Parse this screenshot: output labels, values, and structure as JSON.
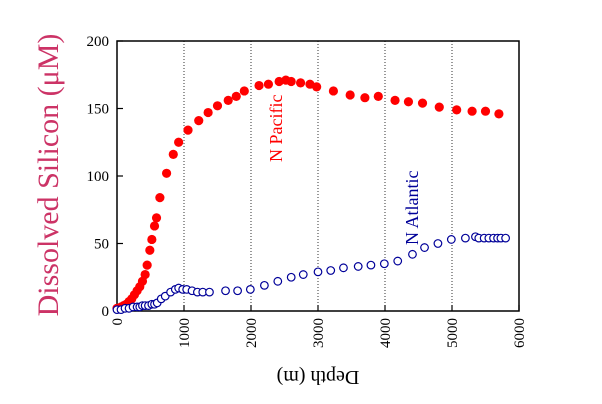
{
  "chart_data": {
    "type": "scatter",
    "title": "",
    "xlabel": "Depth (m)",
    "ylabel": "Dissolved Silicon (μM)",
    "xlim": [
      0,
      6000
    ],
    "ylim": [
      0,
      200
    ],
    "xticks": [
      "0",
      "1000",
      "2000",
      "3000",
      "4000",
      "5000",
      "6000"
    ],
    "yticks": [
      "0",
      "50",
      "100",
      "150",
      "200"
    ],
    "grid": "vertical dotted lines at 1000, 2000, 3000, 4000, 5000",
    "series": [
      {
        "name": "N Pacific",
        "marker": "filled-circle",
        "color": "#ff0000",
        "points": [
          [
            0,
            2
          ],
          [
            30,
            2
          ],
          [
            60,
            3
          ],
          [
            100,
            4
          ],
          [
            140,
            5
          ],
          [
            180,
            7
          ],
          [
            220,
            9
          ],
          [
            260,
            12
          ],
          [
            300,
            15
          ],
          [
            340,
            18
          ],
          [
            380,
            22
          ],
          [
            420,
            27
          ],
          [
            450,
            34
          ],
          [
            490,
            45
          ],
          [
            520,
            53
          ],
          [
            560,
            63
          ],
          [
            590,
            69
          ],
          [
            640,
            84
          ],
          [
            740,
            102
          ],
          [
            840,
            116
          ],
          [
            920,
            125
          ],
          [
            1060,
            134
          ],
          [
            1220,
            141
          ],
          [
            1360,
            147
          ],
          [
            1500,
            152
          ],
          [
            1660,
            156
          ],
          [
            1780,
            159
          ],
          [
            1900,
            163
          ],
          [
            2120,
            167
          ],
          [
            2260,
            168
          ],
          [
            2420,
            170
          ],
          [
            2520,
            171
          ],
          [
            2600,
            170
          ],
          [
            2740,
            169
          ],
          [
            2880,
            168
          ],
          [
            2980,
            166
          ],
          [
            3230,
            163
          ],
          [
            3480,
            160
          ],
          [
            3700,
            158
          ],
          [
            3900,
            159
          ],
          [
            4150,
            156
          ],
          [
            4350,
            155
          ],
          [
            4560,
            154
          ],
          [
            4810,
            151
          ],
          [
            5070,
            149
          ],
          [
            5300,
            148
          ],
          [
            5500,
            148
          ],
          [
            5700,
            146
          ]
        ]
      },
      {
        "name": "N Atlantic",
        "marker": "open-circle",
        "color": "#000099",
        "points": [
          [
            0,
            1
          ],
          [
            60,
            1
          ],
          [
            120,
            2
          ],
          [
            180,
            2
          ],
          [
            240,
            3
          ],
          [
            300,
            3
          ],
          [
            340,
            3
          ],
          [
            380,
            4
          ],
          [
            420,
            4
          ],
          [
            470,
            4
          ],
          [
            520,
            5
          ],
          [
            560,
            5
          ],
          [
            600,
            6
          ],
          [
            660,
            9
          ],
          [
            720,
            11
          ],
          [
            800,
            14
          ],
          [
            870,
            16
          ],
          [
            920,
            17
          ],
          [
            980,
            16
          ],
          [
            1040,
            16
          ],
          [
            1120,
            15
          ],
          [
            1200,
            14
          ],
          [
            1280,
            14
          ],
          [
            1380,
            14
          ],
          [
            1620,
            15
          ],
          [
            1800,
            15
          ],
          [
            1990,
            16
          ],
          [
            2200,
            19
          ],
          [
            2400,
            22
          ],
          [
            2600,
            25
          ],
          [
            2780,
            27
          ],
          [
            3000,
            29
          ],
          [
            3190,
            30
          ],
          [
            3380,
            32
          ],
          [
            3600,
            33
          ],
          [
            3790,
            34
          ],
          [
            3990,
            35
          ],
          [
            4190,
            37
          ],
          [
            4410,
            42
          ],
          [
            4590,
            47
          ],
          [
            4790,
            50
          ],
          [
            4990,
            53
          ],
          [
            5200,
            54
          ],
          [
            5350,
            55
          ],
          [
            5400,
            54
          ],
          [
            5480,
            54
          ],
          [
            5550,
            54
          ],
          [
            5620,
            54
          ],
          [
            5680,
            54
          ],
          [
            5730,
            54
          ],
          [
            5800,
            54
          ]
        ]
      }
    ],
    "annotations": [
      {
        "text": "N Pacific",
        "x": 2400,
        "y": 120,
        "color": "#ff0000",
        "rotation": -90
      },
      {
        "text": "N Atlantic",
        "x": 4400,
        "y": 60,
        "color": "#000099",
        "rotation": -90
      }
    ],
    "colors": {
      "axis": "#000000",
      "grid": "#000000",
      "ylabel": "#cc3366"
    }
  }
}
